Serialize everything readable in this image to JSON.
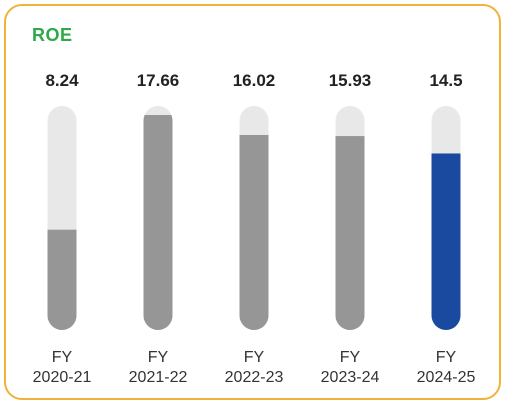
{
  "chart_data": {
    "type": "bar",
    "title": "ROE",
    "categories": [
      [
        "FY",
        "2020-21"
      ],
      [
        "FY",
        "2021-22"
      ],
      [
        "FY",
        "2022-23"
      ],
      [
        "FY",
        "2023-24"
      ],
      [
        "FY",
        "2024-25"
      ]
    ],
    "values": [
      8.24,
      17.66,
      16.02,
      15.93,
      14.5
    ],
    "value_labels": [
      "8.24",
      "17.66",
      "16.02",
      "15.93",
      "14.5"
    ],
    "ylim": [
      0,
      18.4
    ],
    "highlight_index": 4,
    "xlabel": "",
    "ylabel": ""
  },
  "colors": {
    "border": "#f0b23a",
    "title": "#2ea84a",
    "track": "#e8e8e8",
    "fill": "#969696",
    "highlight": "#1a4a9f",
    "text": "#222222"
  }
}
